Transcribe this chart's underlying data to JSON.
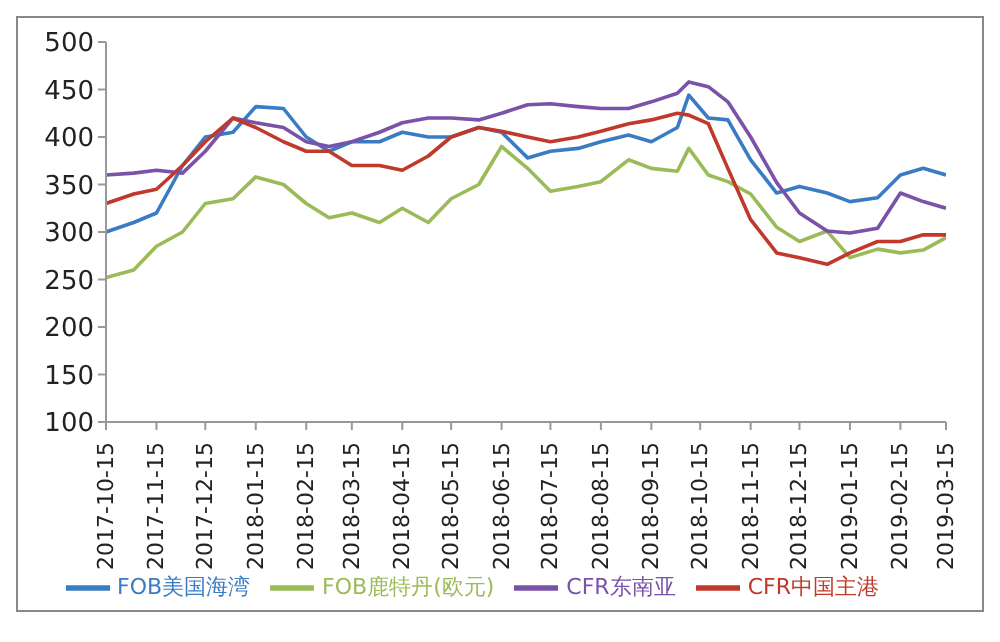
{
  "chart_data": {
    "type": "line",
    "x": [
      "2017-10-15",
      "2017-11-01",
      "2017-11-15",
      "2017-12-01",
      "2017-12-15",
      "2018-01-01",
      "2018-01-15",
      "2018-02-01",
      "2018-02-15",
      "2018-03-01",
      "2018-03-15",
      "2018-04-01",
      "2018-04-15",
      "2018-05-01",
      "2018-05-15",
      "2018-06-01",
      "2018-06-15",
      "2018-07-01",
      "2018-07-15",
      "2018-08-01",
      "2018-08-15",
      "2018-09-01",
      "2018-09-15",
      "2018-10-01",
      "2018-10-08",
      "2018-10-20",
      "2018-11-01",
      "2018-11-15",
      "2018-12-01",
      "2018-12-15",
      "2019-01-01",
      "2019-01-15",
      "2019-02-01",
      "2019-02-15",
      "2019-03-01",
      "2019-03-15"
    ],
    "series": [
      {
        "name": "FOB美国海湾",
        "color": "#3a7cc4",
        "values": [
          300,
          310,
          320,
          370,
          400,
          405,
          432,
          430,
          400,
          385,
          395,
          395,
          405,
          400,
          400,
          410,
          405,
          378,
          385,
          388,
          395,
          402,
          395,
          410,
          444,
          420,
          418,
          376,
          341,
          348,
          341,
          332,
          336,
          360,
          367,
          360
        ]
      },
      {
        "name": "FOB鹿特丹(欧元)",
        "color": "#9bbb59",
        "values": [
          252,
          260,
          285,
          300,
          330,
          335,
          358,
          350,
          330,
          315,
          320,
          310,
          325,
          310,
          335,
          350,
          390,
          367,
          343,
          348,
          353,
          376,
          367,
          364,
          388,
          360,
          353,
          340,
          305,
          290,
          301,
          273,
          282,
          278,
          281,
          294
        ]
      },
      {
        "name": "CFR东南亚",
        "color": "#7a52a8",
        "values": [
          360,
          362,
          365,
          362,
          385,
          420,
          415,
          410,
          395,
          390,
          395,
          405,
          415,
          420,
          420,
          418,
          425,
          434,
          435,
          432,
          430,
          430,
          437,
          446,
          458,
          453,
          437,
          400,
          352,
          320,
          301,
          299,
          304,
          341,
          332,
          325
        ]
      },
      {
        "name": "CFR中国主港",
        "color": "#c0392b",
        "values": [
          330,
          340,
          345,
          370,
          395,
          420,
          410,
          395,
          385,
          385,
          370,
          370,
          365,
          380,
          400,
          410,
          406,
          400,
          395,
          400,
          406,
          414,
          418,
          425,
          423,
          414,
          367,
          313,
          278,
          273,
          266,
          278,
          290,
          290,
          297,
          297
        ]
      }
    ],
    "xlim": [
      "2017-10-15",
      "2019-03-15"
    ],
    "xticks": [
      "2017-10-15",
      "2017-11-15",
      "2017-12-15",
      "2018-01-15",
      "2018-02-15",
      "2018-03-15",
      "2018-04-15",
      "2018-05-15",
      "2018-06-15",
      "2018-07-15",
      "2018-08-15",
      "2018-09-15",
      "2018-10-15",
      "2018-11-15",
      "2018-12-15",
      "2019-01-15",
      "2019-02-15",
      "2019-03-15"
    ],
    "ylim": [
      100,
      500
    ],
    "yticks": [
      100,
      150,
      200,
      250,
      300,
      350,
      400,
      450,
      500
    ],
    "legend": "bottom",
    "marker": "none",
    "line_style": "solid",
    "grid": false
  }
}
